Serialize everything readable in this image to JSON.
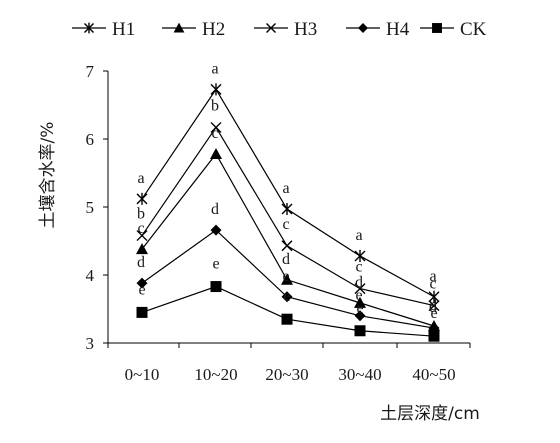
{
  "chart_data": {
    "type": "line",
    "xlabel": "土层深度/cm",
    "ylabel": "土壤含水率/%",
    "ylim": [
      3,
      7
    ],
    "yticks": [
      3,
      4,
      5,
      6,
      7
    ],
    "categories": [
      "0~10",
      "10~20",
      "20~30",
      "30~40",
      "40~50"
    ],
    "legend_position": "top",
    "series": [
      {
        "name": "H1",
        "marker": "asterisk",
        "values": [
          5.12,
          6.73,
          4.97,
          4.28,
          3.68
        ],
        "labels": [
          "a",
          "a",
          "a",
          "a",
          "a"
        ]
      },
      {
        "name": "H2",
        "marker": "triangle",
        "values": [
          4.38,
          5.78,
          3.93,
          3.59,
          3.25
        ],
        "labels": [
          "c",
          "c",
          "d",
          "d",
          "d"
        ]
      },
      {
        "name": "H3",
        "marker": "x",
        "values": [
          4.58,
          6.17,
          4.43,
          3.8,
          3.55
        ],
        "labels": [
          "b",
          "b",
          "c",
          "c",
          "c"
        ]
      },
      {
        "name": "H4",
        "marker": "diamond",
        "values": [
          3.88,
          4.66,
          3.68,
          3.4,
          3.22
        ],
        "labels": [
          "d",
          "d",
          "e",
          "e",
          "d"
        ]
      },
      {
        "name": "CK",
        "marker": "square",
        "values": [
          3.45,
          3.83,
          3.35,
          3.18,
          3.1
        ],
        "labels": [
          "e",
          "e",
          "e",
          "e",
          "e"
        ]
      }
    ]
  }
}
